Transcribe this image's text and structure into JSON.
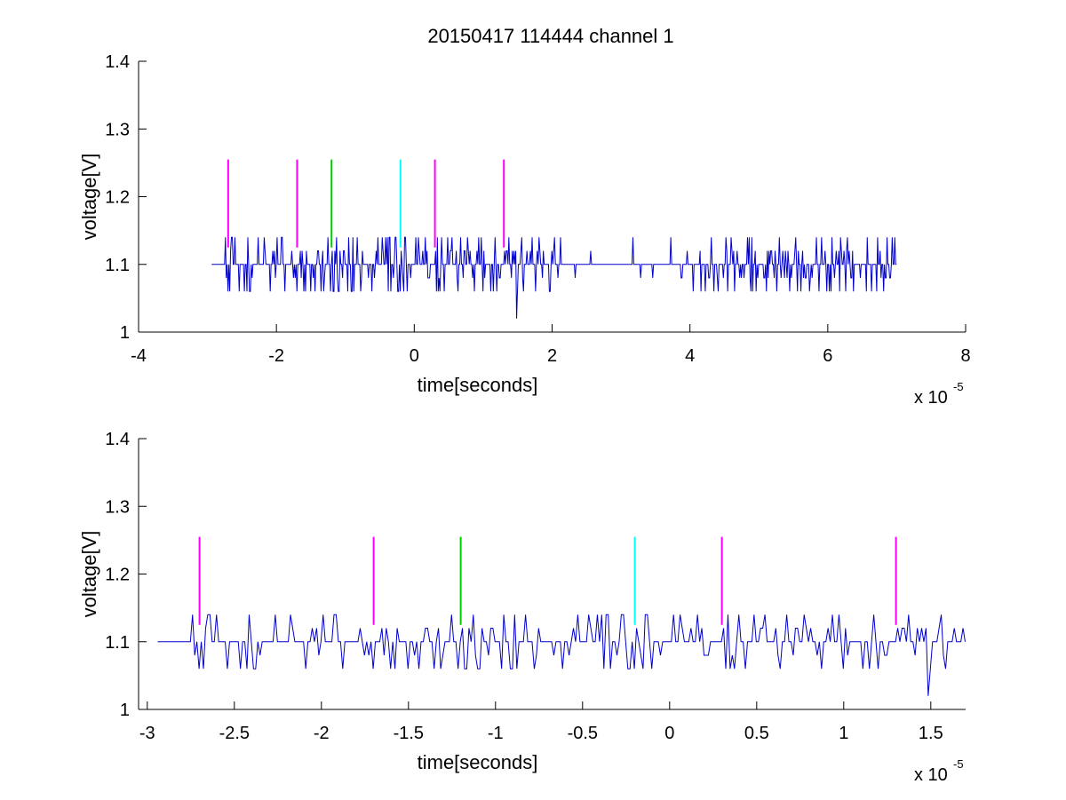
{
  "chart_data": [
    {
      "type": "line",
      "title": "20150417 114444 channel 1",
      "xlabel": "time[seconds]",
      "ylabel": "voltage[V]",
      "x_multiplier": "x 10",
      "x_exponent": "-5",
      "xlim": [
        -4,
        8
      ],
      "ylim": [
        1,
        1.4
      ],
      "xticks": [
        -4,
        -2,
        0,
        2,
        4,
        6,
        8
      ],
      "xtick_labels": [
        "-4",
        "-2",
        "0",
        "2",
        "4",
        "6",
        "8"
      ],
      "yticks": [
        1,
        1.1,
        1.2,
        1.3,
        1.4
      ],
      "ytick_labels": [
        "1",
        "1.1",
        "1.2",
        "1.3",
        "1.4"
      ],
      "grid": false,
      "legend": "none",
      "series": [
        {
          "color": "#0000cc",
          "x_range": [
            -2.94,
            7.0
          ],
          "baseline": 1.1,
          "levels": [
            1.06,
            1.08,
            1.1,
            1.12,
            1.14
          ],
          "min_point": {
            "x": 1.49,
            "y": 1.02
          }
        }
      ],
      "markers": [
        {
          "x": -2.7,
          "y_from": 1.125,
          "y_to": 1.255,
          "color": "#ff00ff"
        },
        {
          "x": -1.7,
          "y_from": 1.125,
          "y_to": 1.255,
          "color": "#ff00ff"
        },
        {
          "x": -1.2,
          "y_from": 1.125,
          "y_to": 1.255,
          "color": "#00cc00"
        },
        {
          "x": -0.2,
          "y_from": 1.125,
          "y_to": 1.255,
          "color": "#00ffff"
        },
        {
          "x": 0.3,
          "y_from": 1.125,
          "y_to": 1.255,
          "color": "#ff00ff"
        },
        {
          "x": 1.3,
          "y_from": 1.125,
          "y_to": 1.255,
          "color": "#ff00ff"
        }
      ]
    },
    {
      "type": "line",
      "title": "",
      "xlabel": "time[seconds]",
      "ylabel": "voltage[V]",
      "x_multiplier": "x 10",
      "x_exponent": "-5",
      "xlim": [
        -3.05,
        1.7
      ],
      "ylim": [
        1,
        1.4
      ],
      "xticks": [
        -3,
        -2.5,
        -2,
        -1.5,
        -1,
        -0.5,
        0,
        0.5,
        1,
        1.5
      ],
      "xtick_labels": [
        "-3",
        "-2.5",
        "-2",
        "-1.5",
        "-1",
        "-0.5",
        "0",
        "0.5",
        "1",
        "1.5"
      ],
      "yticks": [
        1,
        1.1,
        1.2,
        1.3,
        1.4
      ],
      "ytick_labels": [
        "1",
        "1.1",
        "1.2",
        "1.3",
        "1.4"
      ],
      "grid": false,
      "legend": "none",
      "series": [
        {
          "color": "#0000cc",
          "x_range": [
            -2.94,
            1.7
          ],
          "baseline": 1.1,
          "levels": [
            1.06,
            1.08,
            1.1,
            1.12,
            1.14
          ],
          "min_point": {
            "x": 1.49,
            "y": 1.02
          }
        }
      ],
      "markers": [
        {
          "x": -2.7,
          "y_from": 1.125,
          "y_to": 1.255,
          "color": "#ff00ff"
        },
        {
          "x": -1.7,
          "y_from": 1.125,
          "y_to": 1.255,
          "color": "#ff00ff"
        },
        {
          "x": -1.2,
          "y_from": 1.125,
          "y_to": 1.255,
          "color": "#00cc00"
        },
        {
          "x": -0.2,
          "y_from": 1.125,
          "y_to": 1.255,
          "color": "#00ffff"
        },
        {
          "x": 0.3,
          "y_from": 1.125,
          "y_to": 1.255,
          "color": "#ff00ff"
        },
        {
          "x": 1.3,
          "y_from": 1.125,
          "y_to": 1.255,
          "color": "#ff00ff"
        }
      ]
    }
  ]
}
